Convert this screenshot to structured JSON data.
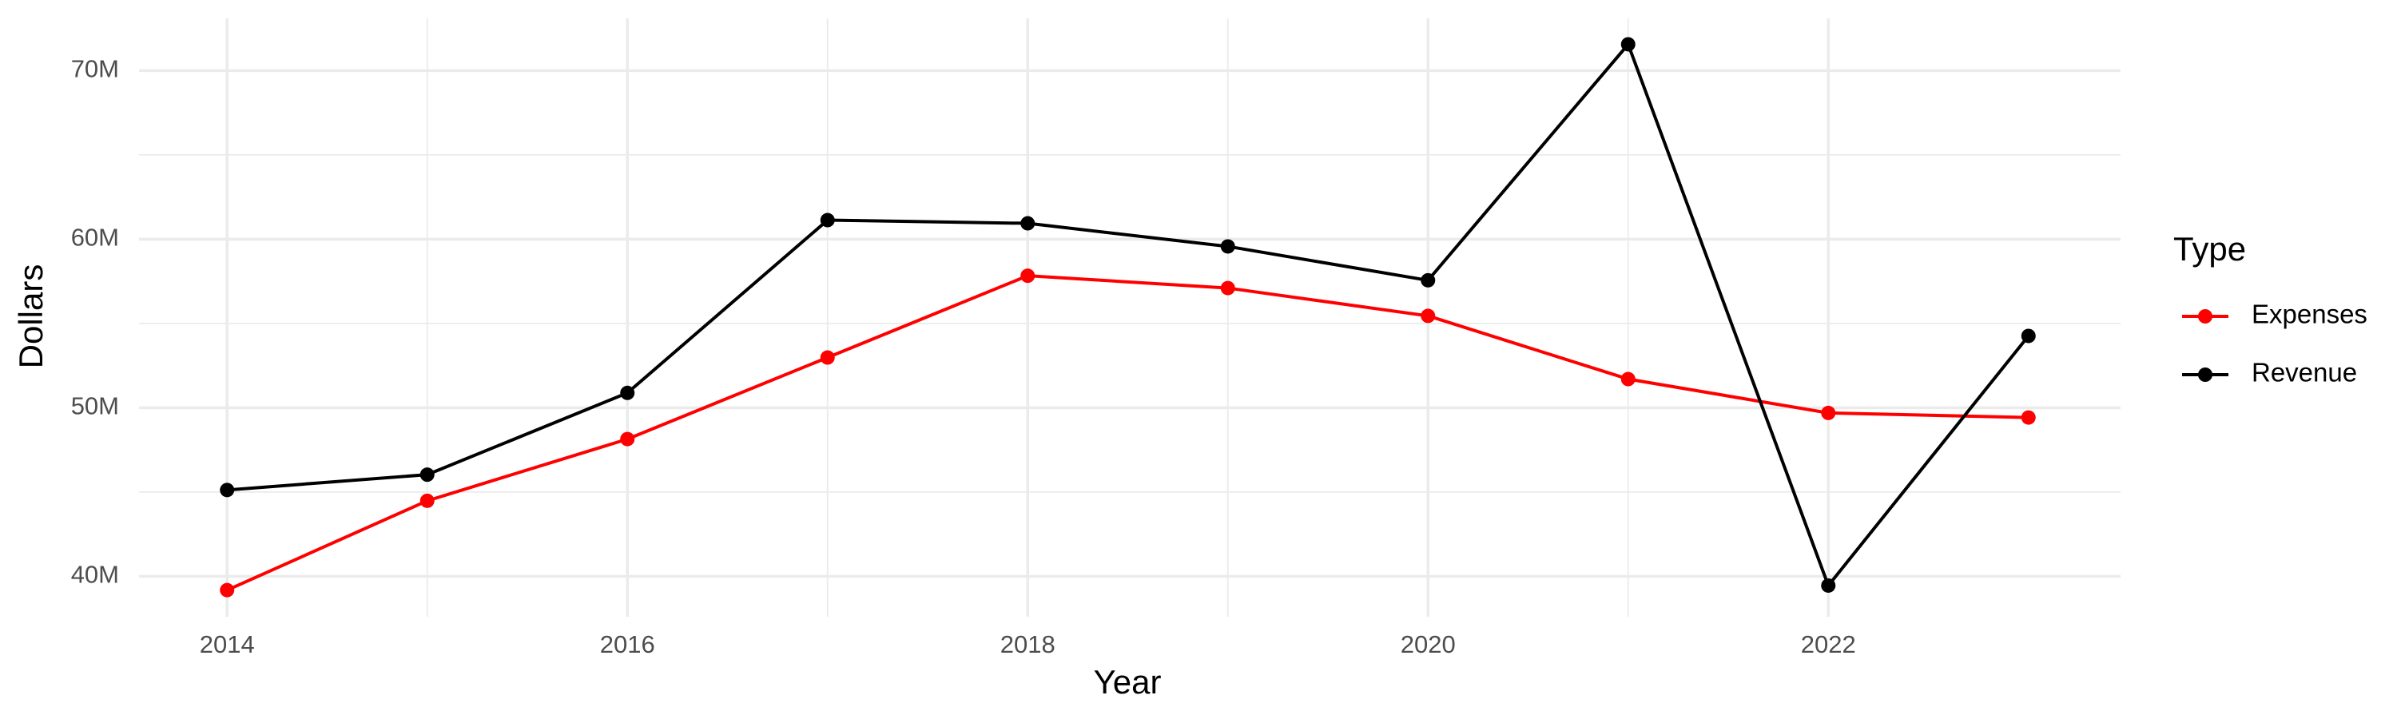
{
  "chart_data": {
    "type": "line",
    "x_label": "Year",
    "y_label": "Dollars",
    "legend_title": "Type",
    "legend_position": "right",
    "x": [
      2014,
      2015,
      2016,
      2017,
      2018,
      2019,
      2020,
      2021,
      2022,
      2023
    ],
    "series": [
      {
        "name": "Expenses",
        "color": "#ff0000",
        "values": [
          39180000,
          44480000,
          48140000,
          52980000,
          57830000,
          57100000,
          55450000,
          51700000,
          49690000,
          49420000
        ]
      },
      {
        "name": "Revenue",
        "color": "#000000",
        "values": [
          45120000,
          46030000,
          50880000,
          61130000,
          60940000,
          59570000,
          57560000,
          71560000,
          39450000,
          54260000
        ]
      }
    ],
    "xlim": [
      2013.56,
      2023.46
    ],
    "xticks": [
      2014,
      2016,
      2018,
      2020,
      2022
    ],
    "ylim": [
      37600000,
      73100000
    ],
    "yticks": [
      {
        "value": 40000000,
        "label": "40M"
      },
      {
        "value": 50000000,
        "label": "50M"
      },
      {
        "value": 60000000,
        "label": "60M"
      },
      {
        "value": 70000000,
        "label": "70M"
      }
    ],
    "grid": true
  }
}
